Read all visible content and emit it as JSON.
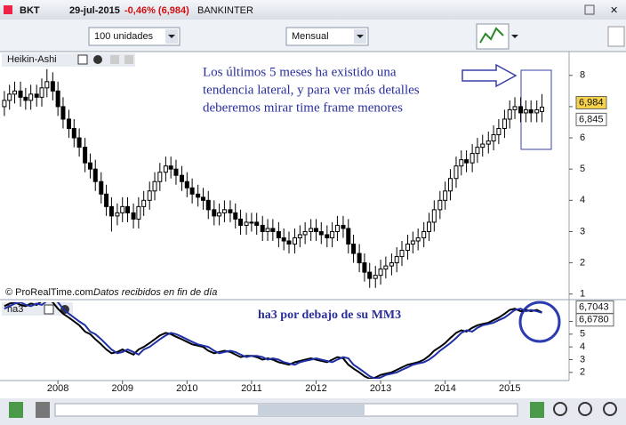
{
  "toolbar": {
    "symbol": "BKT",
    "date": "29-jul-2015",
    "change": "-0,46% (6,984)",
    "name": "BANKINTER",
    "units": "100 unidades",
    "period": "Mensual"
  },
  "chart_data": [
    {
      "type": "candlestick",
      "title": "Heikin-Ashi",
      "annotation_lines": [
        "Los últimos 5 meses ha existido una",
        "tendencia lateral, y para ver más detalles",
        "deberemos mirar time frame menores"
      ],
      "credit": "© ProRealTime.com",
      "credit_note": "Datos recibidos en fin de día",
      "x": [
        2007.17,
        2007.25,
        2007.33,
        2007.42,
        2007.5,
        2007.58,
        2007.67,
        2007.75,
        2007.83,
        2007.92,
        2008,
        2008.08,
        2008.17,
        2008.25,
        2008.33,
        2008.42,
        2008.5,
        2008.58,
        2008.67,
        2008.75,
        2008.83,
        2008.92,
        2009,
        2009.08,
        2009.17,
        2009.25,
        2009.33,
        2009.42,
        2009.5,
        2009.58,
        2009.67,
        2009.75,
        2009.83,
        2009.92,
        2010,
        2010.08,
        2010.17,
        2010.25,
        2010.33,
        2010.42,
        2010.5,
        2010.58,
        2010.67,
        2010.75,
        2010.83,
        2010.92,
        2011,
        2011.08,
        2011.17,
        2011.25,
        2011.33,
        2011.42,
        2011.5,
        2011.58,
        2011.67,
        2011.75,
        2011.83,
        2011.92,
        2012,
        2012.08,
        2012.17,
        2012.25,
        2012.33,
        2012.42,
        2012.5,
        2012.58,
        2012.67,
        2012.75,
        2012.83,
        2012.92,
        2013,
        2013.08,
        2013.17,
        2013.25,
        2013.33,
        2013.42,
        2013.5,
        2013.58,
        2013.67,
        2013.75,
        2013.83,
        2013.92,
        2014,
        2014.08,
        2014.17,
        2014.25,
        2014.33,
        2014.42,
        2014.5,
        2014.58,
        2014.67,
        2014.75,
        2014.83,
        2014.92,
        2015,
        2015.08,
        2015.17,
        2015.25,
        2015.33,
        2015.42,
        2015.5
      ],
      "open": [
        7.0,
        7.2,
        7.4,
        7.5,
        7.3,
        7.2,
        7.4,
        7.3,
        7.6,
        7.8,
        7.5,
        7.0,
        6.6,
        6.3,
        6.0,
        5.7,
        5.2,
        5.0,
        4.6,
        4.2,
        3.8,
        3.5,
        3.6,
        3.8,
        3.6,
        3.4,
        3.8,
        4.0,
        4.3,
        4.6,
        4.9,
        5.1,
        5.0,
        4.8,
        4.6,
        4.4,
        4.2,
        4.1,
        4.0,
        3.7,
        3.5,
        3.6,
        3.7,
        3.6,
        3.4,
        3.2,
        3.3,
        3.3,
        3.2,
        3.0,
        3.1,
        3.0,
        2.8,
        2.7,
        2.6,
        2.8,
        2.9,
        3.0,
        3.1,
        3.0,
        2.9,
        2.8,
        3.0,
        3.2,
        3.1,
        2.6,
        2.3,
        2.0,
        1.7,
        1.5,
        1.6,
        1.8,
        1.9,
        2.0,
        2.2,
        2.4,
        2.6,
        2.7,
        2.8,
        3.0,
        3.3,
        3.7,
        4.0,
        4.3,
        4.7,
        5.1,
        5.3,
        5.2,
        5.5,
        5.7,
        5.8,
        5.9,
        6.1,
        6.3,
        6.6,
        6.9,
        7.0,
        6.8,
        6.9,
        6.8,
        6.845
      ],
      "high": [
        7.5,
        7.7,
        7.8,
        7.8,
        7.6,
        7.7,
        7.7,
        7.9,
        8.2,
        8.1,
        7.8,
        7.3,
        6.9,
        6.6,
        6.3,
        6.0,
        5.5,
        5.3,
        4.9,
        4.5,
        4.1,
        3.9,
        4.1,
        4.1,
        3.9,
        4.1,
        4.3,
        4.6,
        4.9,
        5.2,
        5.4,
        5.4,
        5.3,
        5.1,
        4.9,
        4.7,
        4.5,
        4.4,
        4.3,
        4.0,
        3.9,
        4.0,
        4.0,
        3.9,
        3.7,
        3.6,
        3.6,
        3.6,
        3.5,
        3.4,
        3.4,
        3.3,
        3.1,
        3.0,
        3.1,
        3.2,
        3.3,
        3.4,
        3.4,
        3.3,
        3.2,
        3.3,
        3.5,
        3.5,
        3.4,
        2.9,
        2.6,
        2.3,
        2.0,
        1.9,
        2.1,
        2.2,
        2.3,
        2.5,
        2.7,
        2.9,
        3.0,
        3.1,
        3.3,
        3.6,
        4.0,
        4.3,
        4.6,
        5.0,
        5.4,
        5.6,
        5.6,
        5.8,
        6.0,
        6.1,
        6.2,
        6.4,
        6.6,
        6.9,
        7.2,
        7.3,
        7.3,
        7.2,
        7.2,
        7.2,
        7.4
      ],
      "low": [
        6.7,
        6.9,
        7.1,
        7.0,
        6.9,
        6.9,
        7.0,
        7.0,
        7.3,
        7.2,
        6.7,
        6.3,
        6.0,
        5.7,
        5.4,
        4.9,
        4.7,
        4.3,
        3.9,
        3.5,
        3.0,
        3.2,
        3.3,
        3.3,
        3.1,
        3.1,
        3.5,
        3.7,
        4.0,
        4.3,
        4.6,
        4.7,
        4.5,
        4.3,
        4.1,
        3.9,
        3.8,
        3.7,
        3.4,
        3.2,
        3.2,
        3.3,
        3.3,
        3.1,
        2.9,
        2.9,
        3.0,
        2.9,
        2.7,
        2.7,
        2.7,
        2.5,
        2.4,
        2.3,
        2.3,
        2.5,
        2.6,
        2.7,
        2.7,
        2.6,
        2.5,
        2.5,
        2.7,
        2.8,
        2.3,
        2.0,
        1.7,
        1.4,
        1.2,
        1.2,
        1.3,
        1.5,
        1.6,
        1.7,
        1.9,
        2.1,
        2.3,
        2.4,
        2.5,
        2.7,
        3.0,
        3.4,
        3.7,
        4.0,
        4.4,
        4.8,
        4.9,
        4.9,
        5.2,
        5.4,
        5.5,
        5.6,
        5.8,
        6.0,
        6.3,
        6.6,
        6.5,
        6.5,
        6.5,
        6.5,
        6.5
      ],
      "close": [
        7.2,
        7.4,
        7.5,
        7.3,
        7.2,
        7.4,
        7.3,
        7.6,
        7.8,
        7.5,
        7.0,
        6.6,
        6.3,
        6.0,
        5.7,
        5.2,
        5.0,
        4.6,
        4.2,
        3.8,
        3.5,
        3.6,
        3.8,
        3.6,
        3.4,
        3.8,
        4.0,
        4.3,
        4.6,
        4.9,
        5.1,
        5.0,
        4.8,
        4.6,
        4.4,
        4.2,
        4.1,
        4.0,
        3.7,
        3.5,
        3.6,
        3.7,
        3.6,
        3.4,
        3.2,
        3.3,
        3.3,
        3.2,
        3.0,
        3.1,
        3.0,
        2.8,
        2.7,
        2.6,
        2.8,
        2.9,
        3.0,
        3.1,
        3.0,
        2.9,
        2.8,
        3.0,
        3.2,
        3.1,
        2.6,
        2.3,
        2.0,
        1.7,
        1.5,
        1.6,
        1.8,
        1.9,
        2.0,
        2.2,
        2.4,
        2.6,
        2.7,
        2.8,
        3.0,
        3.3,
        3.7,
        4.0,
        4.3,
        4.7,
        5.1,
        5.3,
        5.2,
        5.5,
        5.7,
        5.8,
        5.9,
        6.1,
        6.3,
        6.6,
        6.9,
        7.0,
        6.8,
        6.9,
        6.8,
        6.9,
        6.984
      ],
      "xlim": [
        2007.13,
        2015.92
      ],
      "ylim": [
        0.85,
        8.25
      ],
      "yticks": [
        1,
        2,
        3,
        4,
        5,
        6,
        7,
        8
      ],
      "last_labels": [
        {
          "value": 6.984,
          "label": "6,984"
        },
        {
          "value": 6.845,
          "label": "6,845"
        }
      ]
    },
    {
      "type": "line",
      "title": "ha3",
      "annotation": "ha3 por debajo de su MM3",
      "x": [
        2007.17,
        2007.25,
        2007.33,
        2007.42,
        2007.5,
        2007.58,
        2007.67,
        2007.75,
        2007.83,
        2007.92,
        2008,
        2008.08,
        2008.17,
        2008.25,
        2008.33,
        2008.42,
        2008.5,
        2008.58,
        2008.67,
        2008.75,
        2008.83,
        2008.92,
        2009,
        2009.08,
        2009.17,
        2009.25,
        2009.33,
        2009.42,
        2009.5,
        2009.58,
        2009.67,
        2009.75,
        2009.83,
        2009.92,
        2010,
        2010.08,
        2010.17,
        2010.25,
        2010.33,
        2010.42,
        2010.5,
        2010.58,
        2010.67,
        2010.75,
        2010.83,
        2010.92,
        2011,
        2011.08,
        2011.17,
        2011.25,
        2011.33,
        2011.42,
        2011.5,
        2011.58,
        2011.67,
        2011.75,
        2011.83,
        2011.92,
        2012,
        2012.08,
        2012.17,
        2012.25,
        2012.33,
        2012.42,
        2012.5,
        2012.58,
        2012.67,
        2012.75,
        2012.83,
        2012.92,
        2013,
        2013.08,
        2013.17,
        2013.25,
        2013.33,
        2013.42,
        2013.5,
        2013.58,
        2013.67,
        2013.75,
        2013.83,
        2013.92,
        2014,
        2014.08,
        2014.17,
        2014.25,
        2014.33,
        2014.42,
        2014.5,
        2014.58,
        2014.67,
        2014.75,
        2014.83,
        2014.92,
        2015,
        2015.08,
        2015.17,
        2015.25,
        2015.33,
        2015.42,
        2015.5
      ],
      "series": [
        {
          "color": "#000000",
          "values": [
            7.2,
            7.4,
            7.5,
            7.3,
            7.2,
            7.4,
            7.3,
            7.6,
            7.8,
            7.5,
            7.0,
            6.6,
            6.3,
            6.0,
            5.7,
            5.2,
            5.0,
            4.6,
            4.2,
            3.8,
            3.5,
            3.6,
            3.8,
            3.6,
            3.4,
            3.8,
            4.0,
            4.3,
            4.6,
            4.9,
            5.1,
            5.0,
            4.8,
            4.6,
            4.4,
            4.2,
            4.1,
            4.0,
            3.7,
            3.5,
            3.6,
            3.7,
            3.6,
            3.4,
            3.2,
            3.3,
            3.3,
            3.2,
            3.0,
            3.1,
            3.0,
            2.8,
            2.7,
            2.6,
            2.8,
            2.9,
            3.0,
            3.1,
            3.0,
            2.9,
            2.8,
            3.0,
            3.2,
            3.1,
            2.6,
            2.3,
            2.0,
            1.7,
            1.5,
            1.6,
            1.8,
            1.9,
            2.0,
            2.2,
            2.4,
            2.6,
            2.7,
            2.8,
            3.0,
            3.3,
            3.7,
            4.0,
            4.3,
            4.7,
            5.1,
            5.3,
            5.2,
            5.5,
            5.7,
            5.8,
            5.9,
            6.1,
            6.3,
            6.6,
            6.9,
            7.0,
            6.8,
            6.9,
            6.8,
            6.9,
            6.7043
          ]
        },
        {
          "color": "#1f2fa8",
          "values": [
            7.0,
            7.2,
            7.4,
            7.5,
            7.3,
            7.2,
            7.4,
            7.3,
            7.6,
            7.8,
            7.5,
            7.0,
            6.6,
            6.3,
            6.0,
            5.7,
            5.2,
            5.0,
            4.6,
            4.2,
            3.8,
            3.5,
            3.6,
            3.8,
            3.6,
            3.4,
            3.8,
            4.0,
            4.3,
            4.6,
            4.9,
            5.1,
            5.0,
            4.8,
            4.6,
            4.4,
            4.2,
            4.1,
            4.0,
            3.7,
            3.5,
            3.6,
            3.7,
            3.6,
            3.4,
            3.2,
            3.3,
            3.3,
            3.2,
            3.0,
            3.1,
            3.0,
            2.8,
            2.7,
            2.6,
            2.8,
            2.9,
            3.0,
            3.1,
            3.0,
            2.9,
            2.8,
            3.0,
            3.2,
            3.1,
            2.6,
            2.3,
            2.0,
            1.7,
            1.5,
            1.6,
            1.8,
            1.9,
            2.0,
            2.2,
            2.4,
            2.6,
            2.7,
            2.8,
            3.0,
            3.3,
            3.7,
            4.0,
            4.3,
            4.7,
            5.1,
            5.3,
            5.2,
            5.5,
            5.7,
            5.8,
            5.9,
            6.1,
            6.3,
            6.6,
            6.9,
            7.0,
            6.8,
            6.9,
            6.8,
            6.678
          ]
        }
      ],
      "xlim": [
        2007.13,
        2015.92
      ],
      "xticks": [
        2008,
        2009,
        2010,
        2011,
        2012,
        2013,
        2014,
        2015
      ],
      "ylim": [
        1.5,
        7.5
      ],
      "yticks": [
        2,
        3,
        4,
        5,
        6
      ],
      "last_labels": [
        {
          "value": 6.7043,
          "label": "6,7043"
        },
        {
          "value": 6.678,
          "label": "6,6780"
        }
      ]
    }
  ]
}
